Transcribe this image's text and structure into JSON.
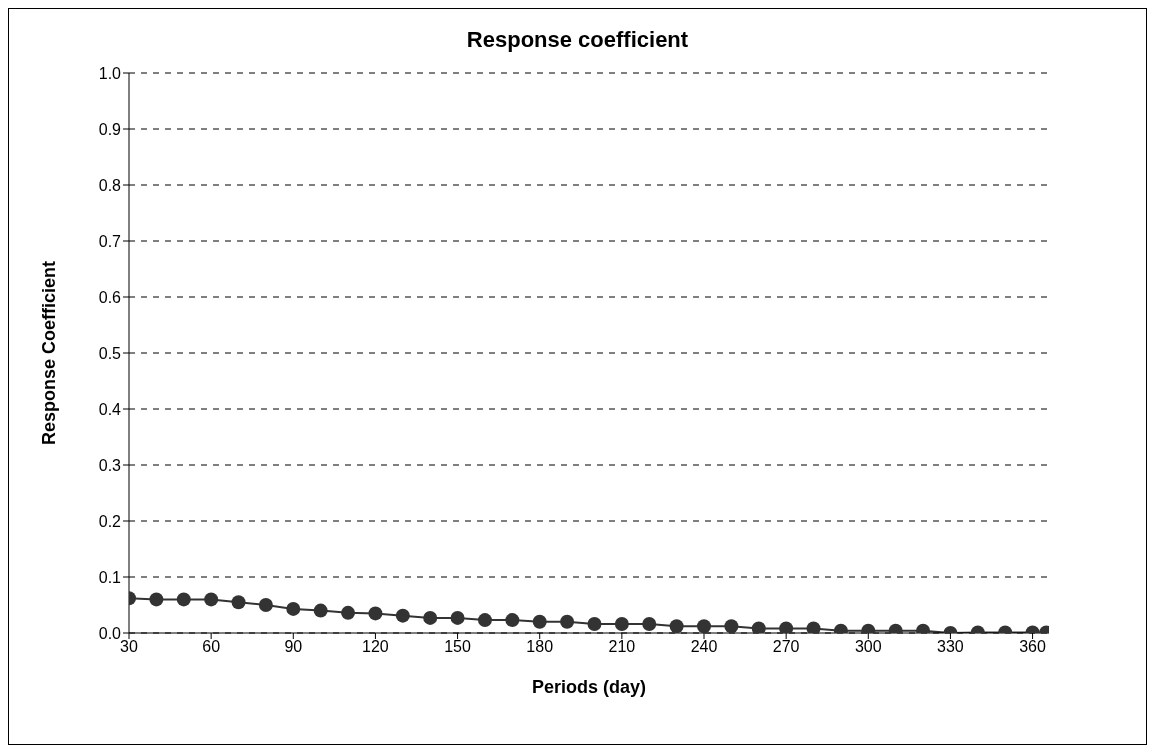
{
  "chart_data": {
    "type": "line",
    "title": "Response coefficient",
    "xlabel": "Periods (day)",
    "ylabel": "Response Coefficient",
    "x": [
      30,
      40,
      50,
      60,
      70,
      80,
      90,
      100,
      110,
      120,
      130,
      140,
      150,
      160,
      170,
      180,
      190,
      200,
      210,
      220,
      230,
      240,
      250,
      260,
      270,
      280,
      290,
      300,
      310,
      320,
      330,
      340,
      350,
      360,
      365
    ],
    "series": [
      {
        "color": "#333333",
        "values": [
          0.062,
          0.06,
          0.06,
          0.06,
          0.055,
          0.05,
          0.043,
          0.04,
          0.036,
          0.035,
          0.031,
          0.027,
          0.027,
          0.023,
          0.023,
          0.02,
          0.02,
          0.016,
          0.016,
          0.016,
          0.012,
          0.012,
          0.012,
          0.008,
          0.008,
          0.008,
          0.004,
          0.004,
          0.004,
          0.004,
          0.0,
          0.001,
          0.001,
          0.001,
          0.001
        ]
      }
    ],
    "xlim": [
      30,
      366
    ],
    "xticks": [
      30,
      60,
      90,
      120,
      150,
      180,
      210,
      240,
      270,
      300,
      330,
      360
    ],
    "ylim": [
      0,
      1
    ],
    "yticks": [
      {
        "value": 0,
        "label": "0.0"
      },
      {
        "value": 0.1,
        "label": "0.1"
      },
      {
        "value": 0.2,
        "label": "0.2"
      },
      {
        "value": 0.3,
        "label": "0.3"
      },
      {
        "value": 0.4,
        "label": "0.4"
      },
      {
        "value": 0.5,
        "label": "0.5"
      },
      {
        "value": 0.6,
        "label": "0.6"
      },
      {
        "value": 0.7,
        "label": "0.7"
      },
      {
        "value": 0.8,
        "label": "0.8"
      },
      {
        "value": 0.9,
        "label": "0.9"
      },
      {
        "value": 1,
        "label": "1.0"
      }
    ],
    "grid": "y",
    "marker": "circle",
    "line_style": "solid"
  }
}
